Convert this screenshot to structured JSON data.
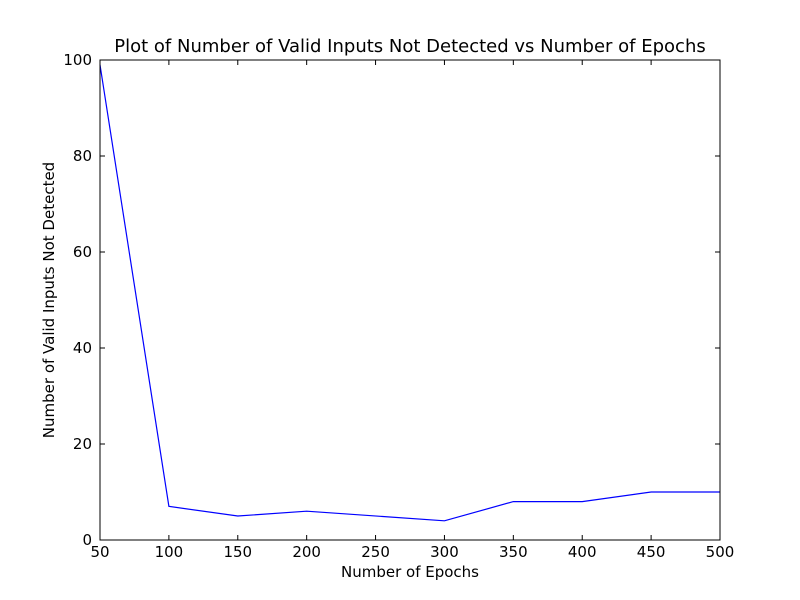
{
  "chart_data": {
    "type": "line",
    "title": "Plot of Number of Valid Inputs Not Detected vs Number of Epochs",
    "xlabel": "Number of Epochs",
    "ylabel": "Number of Valid Inputs Not Detected",
    "xlim": [
      50,
      500
    ],
    "ylim": [
      0,
      100
    ],
    "xticks": [
      50,
      100,
      150,
      200,
      250,
      300,
      350,
      400,
      450,
      500
    ],
    "yticks": [
      0,
      20,
      40,
      60,
      80,
      100
    ],
    "grid": false,
    "series": [
      {
        "color": "#0000ff",
        "x": [
          50,
          100,
          150,
          200,
          300,
          350,
          400,
          450,
          500
        ],
        "y": [
          99,
          7,
          5,
          6,
          4,
          8,
          8,
          10,
          10
        ]
      }
    ]
  }
}
